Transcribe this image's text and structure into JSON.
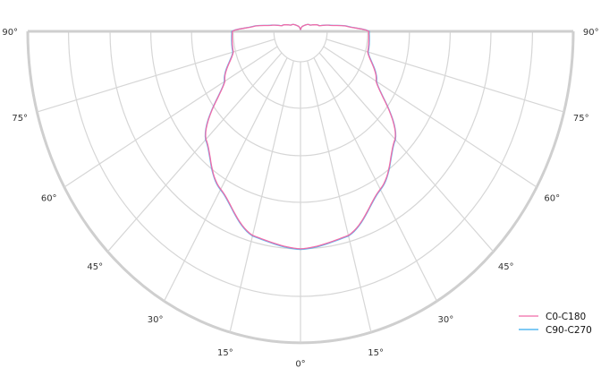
{
  "chart_data": {
    "type": "polar",
    "title": "",
    "angle_unit": "degrees",
    "angle_tick_labels": [
      "0°",
      "15°",
      "30°",
      "45°",
      "60°",
      "75°",
      "90°"
    ],
    "angle_ticks": [
      0,
      15,
      30,
      45,
      60,
      75,
      90
    ],
    "grid": true,
    "legend_position": "bottom-right",
    "radial_scale": "relative intensity (fraction of outer ring), no printed tick labels",
    "series": [
      {
        "name": "C0-C180",
        "color": "#f06ba8",
        "angles": [
          0,
          15,
          30,
          45,
          60,
          75,
          90,
          95,
          100,
          105,
          120,
          150,
          180
        ],
        "values": [
          0.698,
          0.678,
          0.585,
          0.49,
          0.32,
          0.255,
          0.25,
          0.175,
          0.11,
          0.07,
          0.04,
          0.02,
          0.005
        ]
      },
      {
        "name": "C90-C270",
        "color": "#33aaee",
        "angles": [
          0,
          15,
          30,
          45,
          60,
          75,
          90,
          95,
          100,
          105,
          120,
          150,
          180
        ],
        "values": [
          0.7,
          0.68,
          0.587,
          0.492,
          0.322,
          0.257,
          0.252,
          0.177,
          0.112,
          0.071,
          0.04,
          0.02,
          0.005
        ]
      }
    ]
  }
}
